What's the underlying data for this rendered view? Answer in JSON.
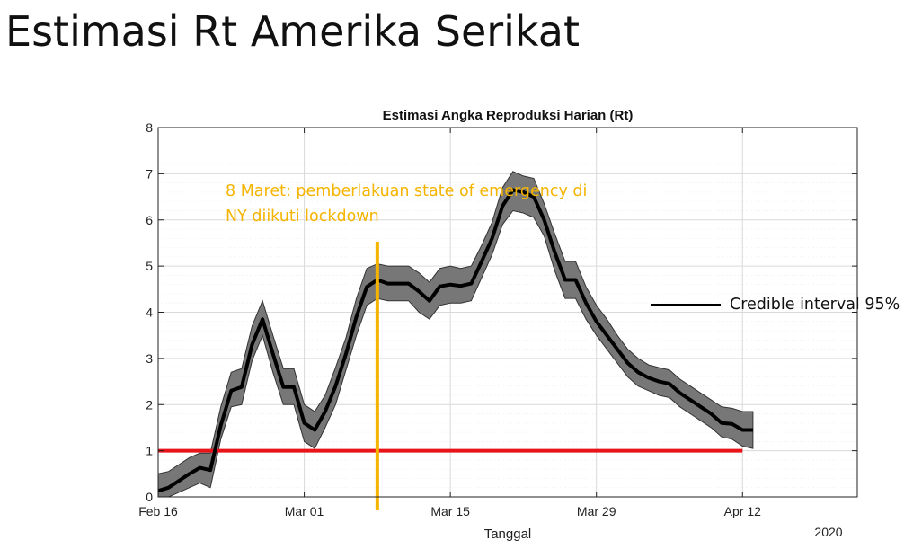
{
  "slide_title": "Estimasi Rt Amerika Serikat",
  "annotation": {
    "line1": "8 Maret: pemberlakuan state of emergency di",
    "line2": "NY diikuti lockdown"
  },
  "legend_label": "Credible interval 95%",
  "colors": {
    "mean_line": "#000000",
    "band": "#777777",
    "threshold": "#e8141a",
    "event_line": "#f5b400",
    "annotation_text": "#f5b400"
  },
  "chart_data": {
    "type": "line",
    "title": "Estimasi Angka Reproduksi Harian (Rt)",
    "xlabel": "Tanggal",
    "ylabel": "",
    "year_label": "2020",
    "xlim": [
      "2020-02-16",
      "2020-04-23"
    ],
    "ylim": [
      0,
      8
    ],
    "x_ticks": [
      {
        "date": "2020-02-16",
        "label": "Feb 16"
      },
      {
        "date": "2020-03-01",
        "label": "Mar 01"
      },
      {
        "date": "2020-03-15",
        "label": "Mar 15"
      },
      {
        "date": "2020-03-29",
        "label": "Mar 29"
      },
      {
        "date": "2020-04-12",
        "label": "Apr 12"
      }
    ],
    "y_ticks": [
      0,
      1,
      2,
      3,
      4,
      5,
      6,
      7,
      8
    ],
    "grid": true,
    "threshold": {
      "value": 1,
      "from": "2020-02-16",
      "to": "2020-04-12"
    },
    "event": {
      "date": "2020-03-08"
    },
    "series": [
      {
        "x": [
          "2020-02-16",
          "2020-02-17",
          "2020-02-18",
          "2020-02-19",
          "2020-02-20",
          "2020-02-21",
          "2020-02-22",
          "2020-02-23",
          "2020-02-24",
          "2020-02-25",
          "2020-02-26",
          "2020-02-27",
          "2020-02-28",
          "2020-02-29",
          "2020-03-01",
          "2020-03-02",
          "2020-03-03",
          "2020-03-04",
          "2020-03-05",
          "2020-03-06",
          "2020-03-07",
          "2020-03-08",
          "2020-03-09",
          "2020-03-10",
          "2020-03-11",
          "2020-03-12",
          "2020-03-13",
          "2020-03-14",
          "2020-03-15",
          "2020-03-16",
          "2020-03-17",
          "2020-03-18",
          "2020-03-19",
          "2020-03-20",
          "2020-03-21",
          "2020-03-22",
          "2020-03-23",
          "2020-03-24",
          "2020-03-25",
          "2020-03-26",
          "2020-03-27",
          "2020-03-28",
          "2020-03-29",
          "2020-03-30",
          "2020-03-31",
          "2020-04-01",
          "2020-04-02",
          "2020-04-03",
          "2020-04-04",
          "2020-04-05",
          "2020-04-06",
          "2020-04-07",
          "2020-04-08",
          "2020-04-09",
          "2020-04-10",
          "2020-04-11",
          "2020-04-12",
          "2020-04-13"
        ],
        "y": [
          0.13,
          0.2,
          0.35,
          0.5,
          0.63,
          0.58,
          1.55,
          2.3,
          2.38,
          3.3,
          3.85,
          3.1,
          2.38,
          2.38,
          1.6,
          1.45,
          1.85,
          2.4,
          3.1,
          3.9,
          4.55,
          4.7,
          4.62,
          4.62,
          4.62,
          4.45,
          4.25,
          4.56,
          4.6,
          4.57,
          4.62,
          5.1,
          5.6,
          6.3,
          6.65,
          6.6,
          6.5,
          6.0,
          5.3,
          4.7,
          4.7,
          4.2,
          3.8,
          3.5,
          3.2,
          2.9,
          2.7,
          2.58,
          2.5,
          2.45,
          2.25,
          2.1,
          1.95,
          1.8,
          1.6,
          1.58,
          1.45,
          1.45
        ],
        "lower": [
          0.0,
          0.0,
          0.1,
          0.2,
          0.3,
          0.2,
          1.25,
          1.95,
          2.0,
          2.95,
          3.5,
          2.7,
          2.0,
          2.0,
          1.2,
          1.05,
          1.5,
          2.0,
          2.75,
          3.5,
          4.15,
          4.3,
          4.25,
          4.25,
          4.25,
          4.0,
          3.85,
          4.15,
          4.2,
          4.2,
          4.25,
          4.75,
          5.25,
          5.9,
          6.2,
          6.15,
          6.05,
          5.65,
          4.9,
          4.3,
          4.3,
          3.85,
          3.5,
          3.2,
          2.9,
          2.6,
          2.4,
          2.3,
          2.2,
          2.15,
          1.95,
          1.8,
          1.65,
          1.5,
          1.3,
          1.25,
          1.1,
          1.05
        ],
        "upper": [
          0.5,
          0.55,
          0.7,
          0.85,
          0.95,
          0.95,
          1.95,
          2.7,
          2.78,
          3.7,
          4.25,
          3.5,
          2.78,
          2.78,
          2.0,
          1.85,
          2.2,
          2.8,
          3.45,
          4.3,
          4.95,
          5.05,
          5.0,
          5.0,
          5.0,
          4.85,
          4.65,
          4.95,
          5.0,
          4.95,
          5.0,
          5.45,
          5.95,
          6.7,
          7.05,
          6.95,
          6.9,
          6.35,
          5.7,
          5.1,
          5.1,
          4.55,
          4.15,
          3.85,
          3.5,
          3.2,
          3.0,
          2.86,
          2.8,
          2.75,
          2.55,
          2.4,
          2.25,
          2.1,
          1.95,
          1.92,
          1.85,
          1.85
        ]
      }
    ]
  }
}
